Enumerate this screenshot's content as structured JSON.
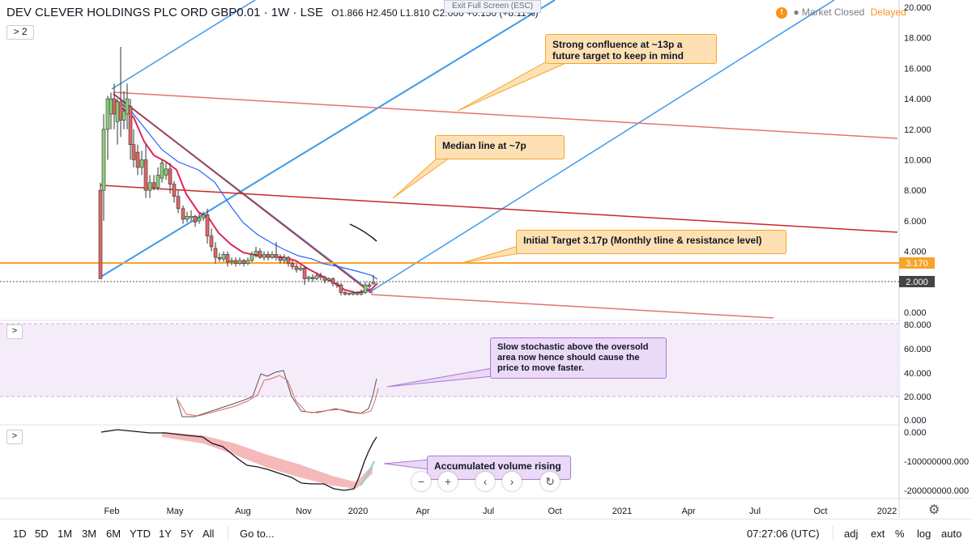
{
  "header": {
    "title": "DEV CLEVER HOLDINGS PLC ORD GBP0.01 · 1W · LSE",
    "open": "O1.866",
    "high": "H2.450",
    "low": "L1.810",
    "close": "C2.000",
    "change": "+0.150 (+8.11%)",
    "series_toggle": "> 2"
  },
  "exit_fullscreen": "Exit Full Screen (ESC)",
  "status": {
    "warn": "!",
    "market": "● Market Closed",
    "delayed": "Delayed"
  },
  "price_axis": {
    "labels": [
      "20.000",
      "18.000",
      "16.000",
      "14.000",
      "12.000",
      "10.000",
      "8.000",
      "6.000",
      "4.000",
      "0.000"
    ],
    "target_label": "3.170",
    "last_label": "2.000"
  },
  "stoch_axis": {
    "labels": [
      "80.000",
      "60.000",
      "40.000",
      "20.000",
      "0.000"
    ]
  },
  "vol_axis": {
    "labels": [
      "0.000",
      "-100000000.000",
      "-200000000.000"
    ]
  },
  "time_axis": {
    "labels": [
      "Feb",
      "May",
      "Aug",
      "Nov",
      "2020",
      "Apr",
      "Jul",
      "Oct",
      "2021",
      "Apr",
      "Jul",
      "Oct",
      "2022"
    ]
  },
  "callouts": {
    "confluence": "Strong confluence at ~13p a future target to keep in mind",
    "median": "Median line at ~7p",
    "initial": "Initial Target 3.17p (Monthly tline & resistance level)",
    "stochastic": "Slow stochastic above the oversold area now hence should cause the price to move faster.",
    "volume": "Accumulated volume rising"
  },
  "pane_buttons": {
    "stoch": ">",
    "volume": ">"
  },
  "nav_buttons": {
    "zoom_out": "−",
    "zoom_in": "+",
    "back": "‹",
    "forward": "›",
    "reset": "↻"
  },
  "bottom_bar": {
    "timeframes": [
      "1D",
      "5D",
      "1M",
      "3M",
      "6M",
      "YTD",
      "1Y",
      "5Y",
      "All"
    ],
    "goto": "Go to...",
    "clock": "07:27:06 (UTC)",
    "toggles": [
      "adj",
      "ext",
      "%",
      "log",
      "auto"
    ]
  },
  "colors": {
    "orange": "#f7a42b",
    "red": "#e57373",
    "darkred": "#c62828",
    "blue": "#3d9be9",
    "up": "#8bd07a",
    "down": "#e06666"
  },
  "icons": {
    "settings": "gear-icon",
    "warning": "warning-icon"
  }
}
